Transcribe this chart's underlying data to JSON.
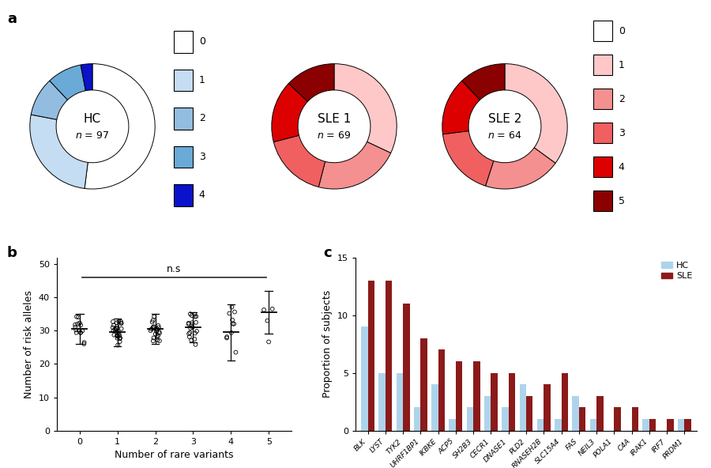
{
  "hc_label": "HC",
  "hc_n": 97,
  "sle1_label": "SLE 1",
  "sle1_n": 69,
  "sle2_label": "SLE 2",
  "sle2_n": 64,
  "hc_values": [
    52,
    26,
    10,
    9,
    3
  ],
  "hc_colors": [
    "#ffffff",
    "#c5ddf2",
    "#93bde0",
    "#6aaad6",
    "#0a12cc"
  ],
  "hc_legend_labels": [
    "0",
    "1",
    "2",
    "3",
    "4"
  ],
  "sle1_values": [
    32,
    22,
    17,
    16,
    13
  ],
  "sle1_colors": [
    "#ffc8c8",
    "#f59090",
    "#f06060",
    "#dd0000",
    "#8b0000"
  ],
  "sle2_values": [
    35,
    20,
    18,
    15,
    12
  ],
  "sle2_colors": [
    "#ffc8c8",
    "#f59090",
    "#f06060",
    "#dd0000",
    "#8b0000"
  ],
  "sle_legend_labels": [
    "0",
    "1",
    "2",
    "3",
    "4",
    "5"
  ],
  "sle_legend_colors": [
    "#ffffff",
    "#ffc8c8",
    "#f59090",
    "#f06060",
    "#dd0000",
    "#8b0000"
  ],
  "scatter_means": [
    30.5,
    29.5,
    30.5,
    31.0,
    29.5,
    35.5
  ],
  "scatter_stds": [
    4.5,
    4.2,
    4.5,
    4.5,
    8.5,
    6.5
  ],
  "scatter_counts": [
    15,
    28,
    22,
    20,
    10,
    4
  ],
  "bar_genes": [
    "BLK",
    "LYST",
    "TYK2",
    "UHRF1BP1",
    "IKBKE",
    "ACP5",
    "SH2B3",
    "CECR1",
    "DNASE1",
    "PLD2",
    "RNASEH2B",
    "SLC15A4",
    "FAS",
    "NEIL3",
    "POLA1",
    "C4A",
    "IRAK1",
    "IRF7",
    "PRDM1"
  ],
  "bar_hc": [
    9,
    5,
    5,
    2,
    4,
    1,
    2,
    3,
    2,
    4,
    1,
    1,
    3,
    1,
    0,
    0,
    1,
    0,
    1
  ],
  "bar_sle": [
    13,
    13,
    11,
    8,
    7,
    6,
    6,
    5,
    5,
    3,
    4,
    5,
    2,
    3,
    2,
    2,
    1,
    1,
    1
  ],
  "hc_bar_color": "#aed4eb",
  "sle_bar_color": "#8b1a1a"
}
